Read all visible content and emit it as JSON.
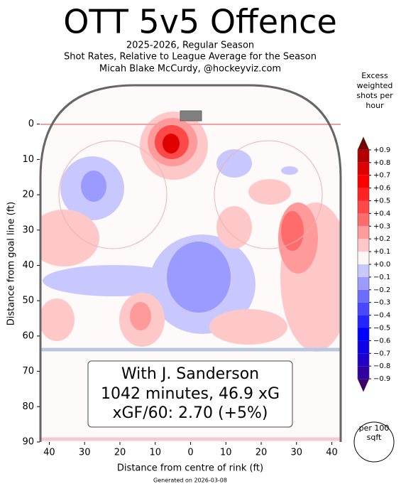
{
  "chart_data": {
    "type": "contour",
    "title": "OTT 5v5 Offence",
    "subtitle": [
      "2025-2026, Regular Season",
      "Shot Rates, Relative to League Average for the Season",
      "Micah Blake McCurdy, @hockeyviz.com"
    ],
    "x_label": "Distance from centre of rink (ft)",
    "y_label": "Distance from goal line (ft)",
    "xlim": [
      -42.5,
      42.5
    ],
    "ylim": [
      -11,
      90
    ],
    "y_inverted": true,
    "xticks": [
      {
        "value": -40,
        "label": "40"
      },
      {
        "value": -30,
        "label": "30"
      },
      {
        "value": -20,
        "label": "20"
      },
      {
        "value": -10,
        "label": "10"
      },
      0,
      10,
      20,
      30,
      40
    ],
    "yticks": [
      0,
      10,
      20,
      30,
      40,
      50,
      60,
      70,
      80,
      90
    ],
    "annotation": [
      "With J. Sanderson",
      "1042 minutes, 46.9 xG",
      "xGF/60: 2.70 (+5%)"
    ],
    "unit_note": "per 100 sqft",
    "footer": "Generated on 2026-03-08",
    "colorbar": {
      "title": "Excess weighted shots per hour",
      "lim": [
        -1.0,
        1.0
      ],
      "colors": [
        "#3b006e",
        "#3000a0",
        "#2000c8",
        "#1000e6",
        "#0000ff",
        "#2424ff",
        "#4848ff",
        "#6c6cff",
        "#9a9aff",
        "#c8c8ff",
        "#fbf7f7",
        "#ffc8c8",
        "#ff9a9a",
        "#ff6c6c",
        "#ff4848",
        "#ff2424",
        "#ff0000",
        "#e00000",
        "#b40000",
        "#780000"
      ],
      "ticks": [
        {
          "value": 0.9,
          "label": "+0.9"
        },
        {
          "value": 0.8,
          "label": "+0.8"
        },
        {
          "value": 0.7,
          "label": "+0.7"
        },
        {
          "value": 0.6,
          "label": "+0.6"
        },
        {
          "value": 0.5,
          "label": "+0.5"
        },
        {
          "value": 0.4,
          "label": "+0.4"
        },
        {
          "value": 0.3,
          "label": "+0.3"
        },
        {
          "value": 0.2,
          "label": "+0.2"
        },
        {
          "value": 0.1,
          "label": "+0.1"
        },
        {
          "value": 0,
          "label": "+0.0"
        },
        {
          "value": -0.1,
          "label": "−0.1"
        },
        {
          "value": -0.2,
          "label": "−0.2"
        },
        {
          "value": -0.3,
          "label": "−0.3"
        },
        {
          "value": -0.4,
          "label": "−0.4"
        },
        {
          "value": -0.5,
          "label": "−0.5"
        },
        {
          "value": -0.6,
          "label": "−0.6"
        },
        {
          "value": -0.7,
          "label": "−0.7"
        },
        {
          "value": -0.8,
          "label": "−0.8"
        },
        {
          "value": -0.9,
          "label": "−0.9"
        }
      ]
    }
  }
}
